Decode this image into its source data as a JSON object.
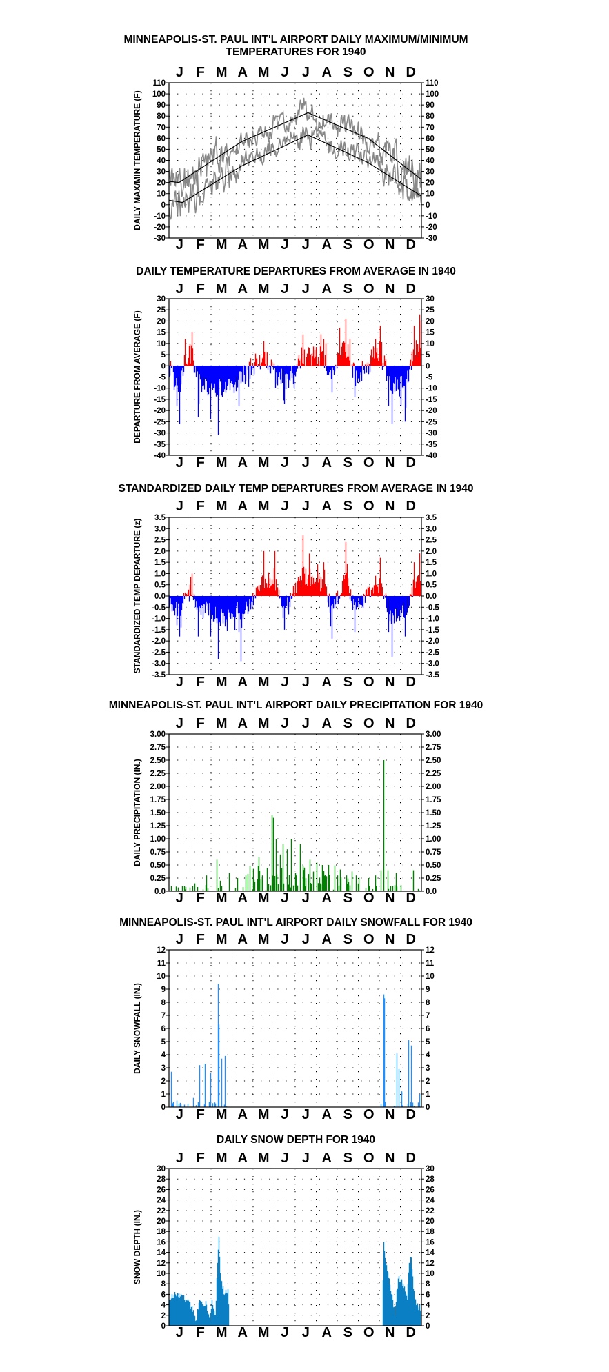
{
  "months": [
    "J",
    "F",
    "M",
    "A",
    "M",
    "J",
    "J",
    "A",
    "S",
    "O",
    "N",
    "D"
  ],
  "colors": {
    "frame": "#000000",
    "grid": "#000000",
    "temp_line": "#888888",
    "normal": "#000000",
    "above": "#ff0000",
    "below": "#0000ff",
    "precip": "#008000",
    "snowfall": "#1e90ff",
    "snowdepth": "#0a7fc4"
  },
  "chart_data": [
    {
      "id": "temps",
      "type": "line",
      "title": [
        "MINNEAPOLIS-ST. PAUL INT'L AIRPORT DAILY MAXIMUM/MINIMUM",
        "TEMPERATURES FOR 1940"
      ],
      "ylabel": "DAILY MAX/MIN TEMPERATURE (F)",
      "ylim": [
        -30,
        110
      ],
      "yticks": [
        -30,
        -20,
        -10,
        0,
        10,
        20,
        30,
        40,
        50,
        60,
        70,
        80,
        90,
        100,
        110
      ],
      "ytick_labels": [
        "-30",
        "-20",
        "-10",
        "0",
        "10",
        "20",
        "30",
        "40",
        "50",
        "60",
        "70",
        "80",
        "90",
        "100",
        "110"
      ],
      "x": "day of year 1940 (1-366)",
      "normal_max": {
        "Jan 1": 21,
        "Jan 15": 20,
        "Apr 15": 57,
        "Jul 20": 83,
        "Oct 15": 60,
        "Dec 31": 23
      },
      "normal_min": {
        "Jan 1": 4,
        "Jan 20": 2,
        "Apr 15": 35,
        "Jul 20": 63,
        "Oct 15": 38,
        "Dec 31": 8
      },
      "daily_max": {
        "Jan": [
          5,
          40
        ],
        "Feb": [
          15,
          42
        ],
        "Mar": [
          10,
          50
        ],
        "Apr": [
          35,
          75
        ],
        "May": [
          45,
          85
        ],
        "Jun": [
          55,
          92
        ],
        "Jul": [
          65,
          100
        ],
        "Aug": [
          65,
          93
        ],
        "Sep": [
          55,
          90
        ],
        "Oct": [
          40,
          80
        ],
        "Nov": [
          10,
          70
        ],
        "Dec": [
          15,
          50
        ]
      },
      "daily_min": {
        "Jan": [
          -20,
          25
        ],
        "Feb": [
          -18,
          25
        ],
        "Mar": [
          -18,
          30
        ],
        "Apr": [
          20,
          45
        ],
        "May": [
          35,
          60
        ],
        "Jun": [
          45,
          70
        ],
        "Jul": [
          55,
          75
        ],
        "Aug": [
          55,
          72
        ],
        "Sep": [
          40,
          65
        ],
        "Oct": [
          30,
          55
        ],
        "Nov": [
          -15,
          40
        ],
        "Dec": [
          -12,
          30
        ]
      },
      "series": [
        {
          "name": "",
          "values": "daily_max"
        },
        {
          "name": "",
          "values": "daily_min"
        }
      ]
    },
    {
      "id": "departures",
      "type": "bar",
      "title": [
        "DAILY TEMPERATURE DEPARTURES FROM AVERAGE IN 1940"
      ],
      "ylabel": "DEPARTURE FROM AVERAGE (F)",
      "ylim": [
        -40,
        30
      ],
      "yticks": [
        -40,
        -35,
        -30,
        -25,
        -20,
        -15,
        -10,
        -5,
        0,
        5,
        10,
        15,
        20,
        25,
        30
      ],
      "ytick_labels": [
        "-40",
        "-35",
        "-30",
        "-25",
        "-20",
        "-15",
        "-10",
        "-5",
        "0",
        "5",
        "10",
        "15",
        "20",
        "25",
        "30"
      ],
      "x": "day of year 1940 (1-366)",
      "values_by_day": {
        "1": -5,
        "12": -18,
        "16": -26,
        "24": 12,
        "34": 15,
        "43": -23,
        "61": -24,
        "72": -31,
        "102": -18,
        "138": 11,
        "155": -10,
        "168": -17,
        "182": -10,
        "195": 14,
        "225": 12,
        "237": -12,
        "248": 17,
        "257": 21,
        "263": 12,
        "270": -14,
        "300": 12,
        "307": 18,
        "319": -18,
        "324": -26,
        "343": -25,
        "356": 18,
        "364": 23,
        "366": 20
      }
    },
    {
      "id": "standardized",
      "type": "bar",
      "title": [
        "STANDARDIZED DAILY TEMP DEPARTURES FROM AVERAGE IN 1940"
      ],
      "ylabel": "STANDARDIZED TEMP DEPARTURE (z)",
      "ylim": [
        -3.5,
        3.5
      ],
      "yticks": [
        -3.5,
        -3,
        -2.5,
        -2,
        -1.5,
        -1,
        -0.5,
        0,
        0.5,
        1,
        1.5,
        2,
        2.5,
        3,
        3.5
      ],
      "ytick_labels": [
        "-3.5",
        "-3.0",
        "-2.5",
        "-2.0",
        "-1.5",
        "-1.0",
        "-0.5",
        "0.0",
        "0.5",
        "1.0",
        "1.5",
        "2.0",
        "2.5",
        "3.0",
        "3.5"
      ],
      "x": "day of year 1940 (1-366)",
      "values_by_day": {
        "1": -0.5,
        "12": -1.3,
        "16": -1.8,
        "34": 1.0,
        "43": -1.8,
        "61": -1.8,
        "72": -2.8,
        "102": -1.6,
        "105": -2.9,
        "138": 2.0,
        "154": 2.0,
        "168": -1.5,
        "195": 2.7,
        "225": 1.5,
        "237": -1.9,
        "257": 2.4,
        "270": -1.6,
        "300": 0.9,
        "307": 1.7,
        "319": -1.6,
        "324": -2.7,
        "343": -1.8,
        "356": 1.5,
        "364": 1.9
      }
    },
    {
      "id": "precip",
      "type": "bar",
      "title": [
        "MINNEAPOLIS-ST. PAUL INT'L AIRPORT DAILY PRECIPITATION FOR 1940"
      ],
      "ylabel": "DAILY PRECIPITATION (IN.)",
      "ylim": [
        0,
        3
      ],
      "yticks": [
        0,
        0.25,
        0.5,
        0.75,
        1,
        1.25,
        1.5,
        1.75,
        2,
        2.25,
        2.5,
        2.75,
        3
      ],
      "ytick_labels": [
        "0.0",
        "0.25",
        "0.50",
        "0.75",
        "1.00",
        "1.25",
        "1.50",
        "1.75",
        "2.00",
        "2.25",
        "2.50",
        "2.75",
        "3.00"
      ],
      "x": "day of year 1940 (1-366)",
      "values_by_day": {
        "4": 0.1,
        "20": 0.1,
        "38": 0.15,
        "55": 0.3,
        "70": 0.6,
        "75": 0.2,
        "88": 0.35,
        "100": 0.25,
        "112": 0.3,
        "131": 0.65,
        "136": 0.3,
        "150": 1.45,
        "152": 1.4,
        "156": 1.0,
        "162": 0.7,
        "166": 0.9,
        "172": 0.8,
        "178": 1.0,
        "185": 0.3,
        "191": 0.9,
        "197": 0.45,
        "205": 0.6,
        "215": 0.55,
        "223": 0.5,
        "232": 0.5,
        "245": 0.3,
        "258": 0.3,
        "272": 0.3,
        "290": 0.25,
        "300": 0.3,
        "308": 0.4,
        "312": 2.5,
        "318": 0.4,
        "330": 0.35,
        "355": 0.4
      }
    },
    {
      "id": "snowfall",
      "type": "bar",
      "title": [
        "MINNEAPOLIS-ST. PAUL INT'L AIRPORT DAILY SNOWFALL FOR 1940"
      ],
      "ylabel": "DAILY SNOWFALL (IN.)",
      "ylim": [
        0,
        12
      ],
      "yticks": [
        0,
        1,
        2,
        3,
        4,
        5,
        6,
        7,
        8,
        9,
        10,
        11,
        12
      ],
      "ytick_labels": [
        "0",
        "1",
        "2",
        "3",
        "4",
        "5",
        "6",
        "7",
        "8",
        "9",
        "10",
        "11",
        "12"
      ],
      "x": "day of year 1940 (1-366)",
      "values_by_day": {
        "4": 2.7,
        "7": 0.4,
        "12": 0.5,
        "18": 0.2,
        "36": 0.7,
        "45": 3.2,
        "53": 3.3,
        "61": 2.6,
        "64": 0.3,
        "72": 9.4,
        "73": 6.3,
        "77": 3.7,
        "82": 3.9,
        "312": 8.6,
        "313": 8.3,
        "331": 4.1,
        "334": 2.9,
        "338": 1.2,
        "348": 5.1,
        "352": 4.7,
        "364": 1.0
      }
    },
    {
      "id": "snowdepth",
      "type": "area",
      "title": [
        "DAILY SNOW DEPTH FOR 1940"
      ],
      "ylabel": "SNOW DEPTH (IN.)",
      "ylim": [
        0,
        30
      ],
      "yticks": [
        0,
        2,
        4,
        6,
        8,
        10,
        12,
        14,
        16,
        18,
        20,
        22,
        24,
        26,
        28,
        30
      ],
      "ytick_labels": [
        "0",
        "2",
        "4",
        "6",
        "8",
        "10",
        "12",
        "14",
        "16",
        "18",
        "20",
        "22",
        "24",
        "26",
        "28",
        "30"
      ],
      "x": "day of year 1940 (1-366)",
      "values_by_day": {
        "1": 5,
        "10": 6,
        "25": 5,
        "36": 3,
        "40": 1,
        "45": 5,
        "55": 4,
        "60": 1,
        "63": 5,
        "68": 2,
        "71": 12,
        "73": 17,
        "75": 10,
        "80": 6,
        "86": 7,
        "88": 0,
        "310": 0,
        "312": 16,
        "315": 12,
        "320": 9,
        "325": 5,
        "328": 2,
        "333": 9,
        "340": 8,
        "346": 5,
        "349": 12,
        "352": 13,
        "355": 7,
        "360": 4,
        "366": 3
      }
    }
  ]
}
